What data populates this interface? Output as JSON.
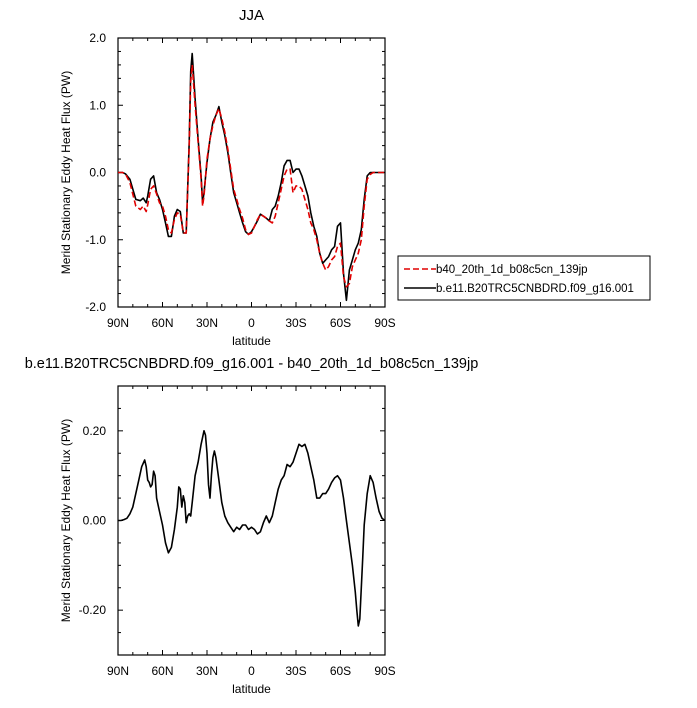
{
  "chart_data": [
    {
      "type": "line",
      "title": "JJA",
      "xlabel": "latitude",
      "ylabel": "Merid Stationary Eddy Heat Flux (PW)",
      "xlim": [
        90,
        -90
      ],
      "ylim": [
        -2.0,
        2.0
      ],
      "x_ticks": [
        90,
        60,
        30,
        0,
        -30,
        -60,
        -90
      ],
      "x_tick_labels": [
        "90N",
        "60N",
        "30N",
        "0",
        "30S",
        "60S",
        "90S"
      ],
      "y_ticks": [
        -2.0,
        -1.0,
        0.0,
        1.0,
        2.0
      ],
      "y_tick_labels": [
        "-2.0",
        "-1.0",
        "0.0",
        "1.0",
        "2.0"
      ],
      "grid": false,
      "legend": {
        "placement": "outside-right"
      },
      "series": [
        {
          "name": "b40_20th_1d_b08c5cn_139jp",
          "color": "#e00000",
          "dash": "dashed",
          "x": [
            90,
            87,
            85,
            82,
            78,
            75,
            73,
            71,
            70,
            68,
            66,
            64,
            62,
            60,
            58,
            56,
            54,
            52,
            50,
            48,
            46,
            44,
            42,
            41,
            40,
            38,
            36,
            34,
            33,
            32,
            30,
            28,
            26,
            24,
            22,
            20,
            18,
            16,
            14,
            12,
            10,
            8,
            6,
            4,
            2,
            0,
            -2,
            -4,
            -6,
            -8,
            -10,
            -12,
            -14,
            -16,
            -18,
            -20,
            -22,
            -24,
            -26,
            -28,
            -30,
            -32,
            -34,
            -36,
            -38,
            -40,
            -42,
            -44,
            -46,
            -48,
            -50,
            -52,
            -54,
            -56,
            -58,
            -60,
            -62,
            -64,
            -66,
            -68,
            -70,
            -72,
            -74,
            -76,
            -78,
            -80,
            -82,
            -84,
            -86,
            -88,
            -90
          ],
          "values": [
            0,
            0,
            -0.02,
            -0.15,
            -0.5,
            -0.55,
            -0.5,
            -0.58,
            -0.48,
            -0.25,
            -0.2,
            -0.32,
            -0.45,
            -0.5,
            -0.65,
            -0.85,
            -0.9,
            -0.7,
            -0.6,
            -0.62,
            -0.9,
            -0.9,
            0.4,
            1.35,
            1.6,
            1.0,
            0.45,
            -0.1,
            -0.5,
            -0.35,
            0.2,
            0.5,
            0.7,
            0.85,
            0.95,
            0.8,
            0.6,
            0.35,
            0.05,
            -0.25,
            -0.4,
            -0.55,
            -0.68,
            -0.85,
            -0.92,
            -0.9,
            -0.8,
            -0.7,
            -0.62,
            -0.65,
            -0.68,
            -0.72,
            -0.75,
            -0.65,
            -0.45,
            -0.25,
            -0.05,
            0.05,
            0.05,
            -0.3,
            -0.2,
            -0.2,
            -0.25,
            -0.4,
            -0.55,
            -0.75,
            -0.85,
            -1.0,
            -1.2,
            -1.35,
            -1.45,
            -1.4,
            -1.3,
            -1.25,
            -1.1,
            -1.05,
            -1.55,
            -1.7,
            -1.65,
            -1.4,
            -1.3,
            -1.2,
            -1.0,
            -0.5,
            -0.1,
            -0.03,
            0,
            0,
            0,
            0,
            0
          ]
        },
        {
          "name": "b.e11.B20TRC5CNBDRD.f09_g16.001",
          "color": "#000000",
          "dash": "solid",
          "x": [
            90,
            87,
            85,
            82,
            78,
            75,
            73,
            71,
            70,
            68,
            66,
            64,
            62,
            60,
            58,
            56,
            54,
            52,
            50,
            48,
            46,
            44,
            42,
            41,
            40,
            38,
            36,
            34,
            33,
            32,
            30,
            28,
            26,
            24,
            22,
            20,
            18,
            16,
            14,
            12,
            10,
            8,
            6,
            4,
            2,
            0,
            -2,
            -4,
            -6,
            -8,
            -10,
            -12,
            -14,
            -16,
            -18,
            -20,
            -22,
            -24,
            -26,
            -28,
            -30,
            -32,
            -34,
            -36,
            -38,
            -40,
            -42,
            -44,
            -46,
            -48,
            -50,
            -52,
            -54,
            -56,
            -58,
            -60,
            -62,
            -64,
            -66,
            -68,
            -70,
            -72,
            -74,
            -76,
            -78,
            -80,
            -82,
            -84,
            -86,
            -88,
            -90
          ],
          "values": [
            0,
            0,
            -0.02,
            -0.1,
            -0.4,
            -0.42,
            -0.38,
            -0.45,
            -0.35,
            -0.1,
            -0.05,
            -0.3,
            -0.4,
            -0.55,
            -0.75,
            -0.95,
            -0.95,
            -0.65,
            -0.55,
            -0.58,
            -0.9,
            -0.9,
            0.45,
            1.5,
            1.77,
            1.1,
            0.5,
            -0.05,
            -0.45,
            -0.3,
            0.15,
            0.5,
            0.75,
            0.85,
            0.98,
            0.75,
            0.55,
            0.3,
            0.0,
            -0.3,
            -0.45,
            -0.6,
            -0.75,
            -0.88,
            -0.92,
            -0.88,
            -0.8,
            -0.72,
            -0.62,
            -0.65,
            -0.68,
            -0.72,
            -0.55,
            -0.5,
            -0.35,
            -0.15,
            0.1,
            0.18,
            0.18,
            0.0,
            0.05,
            0.05,
            -0.05,
            -0.2,
            -0.35,
            -0.6,
            -0.8,
            -0.95,
            -1.2,
            -1.35,
            -1.3,
            -1.25,
            -1.15,
            -1.1,
            -0.8,
            -0.75,
            -1.5,
            -1.9,
            -1.45,
            -1.3,
            -1.15,
            -1.05,
            -0.85,
            -0.4,
            -0.05,
            0,
            0,
            0,
            0,
            0,
            0
          ]
        }
      ]
    },
    {
      "type": "line",
      "title": "b.e11.B20TRC5CNBDRD.f09_g16.001 - b40_20th_1d_b08c5cn_139jp",
      "xlabel": "latitude",
      "ylabel": "Merid Stationary Eddy Heat Flux (PW)",
      "xlim": [
        90,
        -90
      ],
      "ylim": [
        -0.3,
        0.3
      ],
      "x_ticks": [
        90,
        60,
        30,
        0,
        -30,
        -60,
        -90
      ],
      "x_tick_labels": [
        "90N",
        "60N",
        "30N",
        "0",
        "30S",
        "60S",
        "90S"
      ],
      "y_ticks": [
        -0.2,
        0.0,
        0.2
      ],
      "y_tick_labels": [
        "-0.20",
        "0.00",
        "0.20"
      ],
      "grid": false,
      "series": [
        {
          "color": "#000000",
          "dash": "solid",
          "x": [
            90,
            88,
            86,
            84,
            82,
            80,
            78,
            76,
            74,
            72,
            71,
            70,
            69,
            68,
            67,
            66,
            65,
            64,
            62,
            60,
            58,
            56,
            54,
            52,
            50,
            49,
            48,
            47,
            46,
            45,
            44,
            43,
            42,
            41,
            40,
            38,
            36,
            34,
            32,
            31,
            30,
            29,
            28,
            27,
            26,
            25,
            24,
            22,
            20,
            18,
            16,
            14,
            12,
            10,
            8,
            6,
            4,
            2,
            0,
            -2,
            -4,
            -6,
            -8,
            -10,
            -12,
            -14,
            -16,
            -18,
            -20,
            -22,
            -24,
            -26,
            -28,
            -30,
            -32,
            -34,
            -36,
            -37,
            -38,
            -40,
            -42,
            -44,
            -46,
            -48,
            -50,
            -52,
            -54,
            -56,
            -58,
            -60,
            -62,
            -64,
            -66,
            -68,
            -70,
            -71,
            -72,
            -73,
            -74,
            -75,
            -76,
            -78,
            -80,
            -82,
            -84,
            -86,
            -88,
            -90
          ],
          "values": [
            0,
            0,
            0.002,
            0.005,
            0.015,
            0.03,
            0.06,
            0.09,
            0.12,
            0.135,
            0.12,
            0.09,
            0.085,
            0.075,
            0.08,
            0.11,
            0.1,
            0.05,
            0.02,
            -0.01,
            -0.05,
            -0.072,
            -0.06,
            -0.02,
            0.03,
            0.075,
            0.07,
            0.03,
            0.055,
            0.04,
            -0.005,
            0.01,
            0.015,
            0.01,
            0.04,
            0.1,
            0.13,
            0.17,
            0.2,
            0.19,
            0.15,
            0.08,
            0.05,
            0.1,
            0.14,
            0.155,
            0.14,
            0.09,
            0.04,
            0.01,
            -0.005,
            -0.015,
            -0.025,
            -0.015,
            -0.02,
            -0.01,
            -0.01,
            -0.02,
            -0.015,
            -0.02,
            -0.03,
            -0.025,
            -0.005,
            0.01,
            -0.005,
            0.01,
            0.04,
            0.07,
            0.09,
            0.1,
            0.125,
            0.12,
            0.13,
            0.15,
            0.17,
            0.165,
            0.17,
            0.16,
            0.15,
            0.12,
            0.09,
            0.05,
            0.05,
            0.06,
            0.06,
            0.07,
            0.085,
            0.095,
            0.1,
            0.09,
            0.05,
            0.0,
            -0.05,
            -0.1,
            -0.16,
            -0.2,
            -0.235,
            -0.22,
            -0.15,
            -0.08,
            -0.01,
            0.06,
            0.1,
            0.085,
            0.05,
            0.02,
            0.005,
            0
          ]
        }
      ]
    }
  ]
}
